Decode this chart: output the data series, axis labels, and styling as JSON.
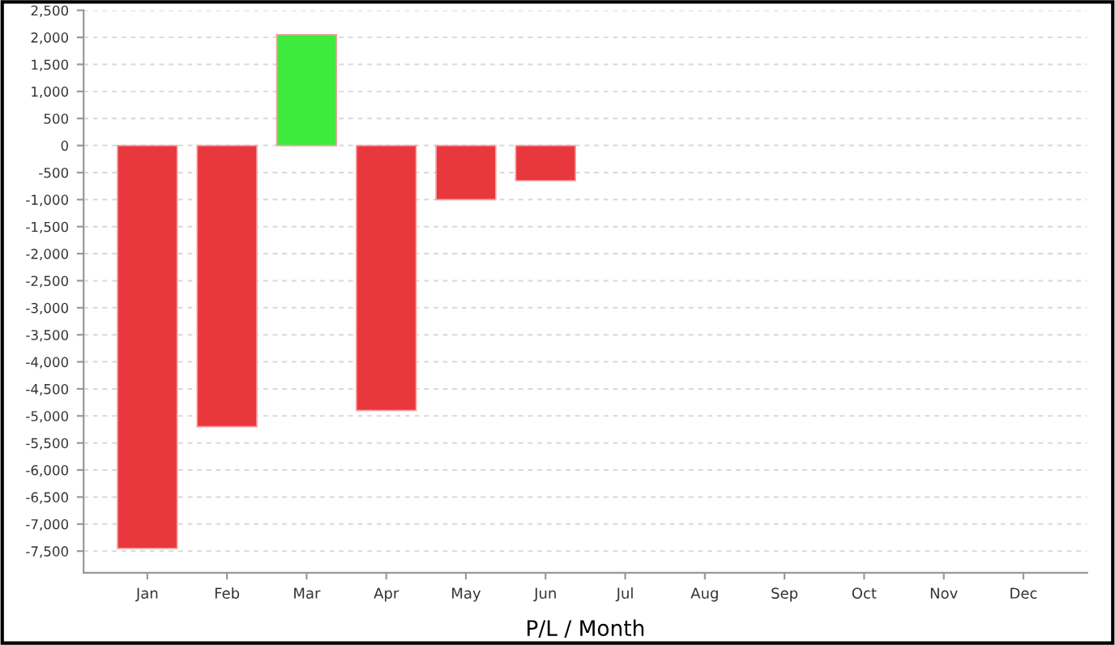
{
  "chart_data": {
    "type": "bar",
    "xlabel": "P/L / Month",
    "categories": [
      "Jan",
      "Feb",
      "Mar",
      "Apr",
      "May",
      "Jun",
      "Jul",
      "Aug",
      "Sep",
      "Oct",
      "Nov",
      "Dec"
    ],
    "values": [
      -7450,
      -5200,
      2050,
      -4900,
      -1000,
      -650,
      null,
      null,
      null,
      null,
      null,
      null
    ],
    "colors": [
      "#e8383d",
      "#e8383d",
      "#3deb3d",
      "#e8383d",
      "#e8383d",
      "#e8383d",
      "#e8383d",
      "#e8383d",
      "#e8383d",
      "#e8383d",
      "#e8383d",
      "#e8383d"
    ],
    "ylim": [
      -7900,
      2500
    ],
    "yticks": [
      {
        "value": -7500,
        "label": "-7,500"
      },
      {
        "value": -7000,
        "label": "-7,000"
      },
      {
        "value": -6500,
        "label": "-6,500"
      },
      {
        "value": -6000,
        "label": "-6,000"
      },
      {
        "value": -5500,
        "label": "-5,500"
      },
      {
        "value": -5000,
        "label": "-5,000"
      },
      {
        "value": -4500,
        "label": "-4,500"
      },
      {
        "value": -4000,
        "label": "-4,000"
      },
      {
        "value": -3500,
        "label": "-3,500"
      },
      {
        "value": -3000,
        "label": "-3,000"
      },
      {
        "value": -2500,
        "label": "-2,500"
      },
      {
        "value": -2000,
        "label": "-2,000"
      },
      {
        "value": -1500,
        "label": "-1,500"
      },
      {
        "value": -1000,
        "label": "-1,000"
      },
      {
        "value": -500,
        "label": "-500"
      },
      0,
      500,
      {
        "value": 1000,
        "label": "1,000"
      },
      {
        "value": 1500,
        "label": "1,500"
      },
      {
        "value": 2000,
        "label": "2,000"
      },
      {
        "value": 2500,
        "label": "2,500"
      }
    ],
    "grid": "y",
    "legend": false
  }
}
